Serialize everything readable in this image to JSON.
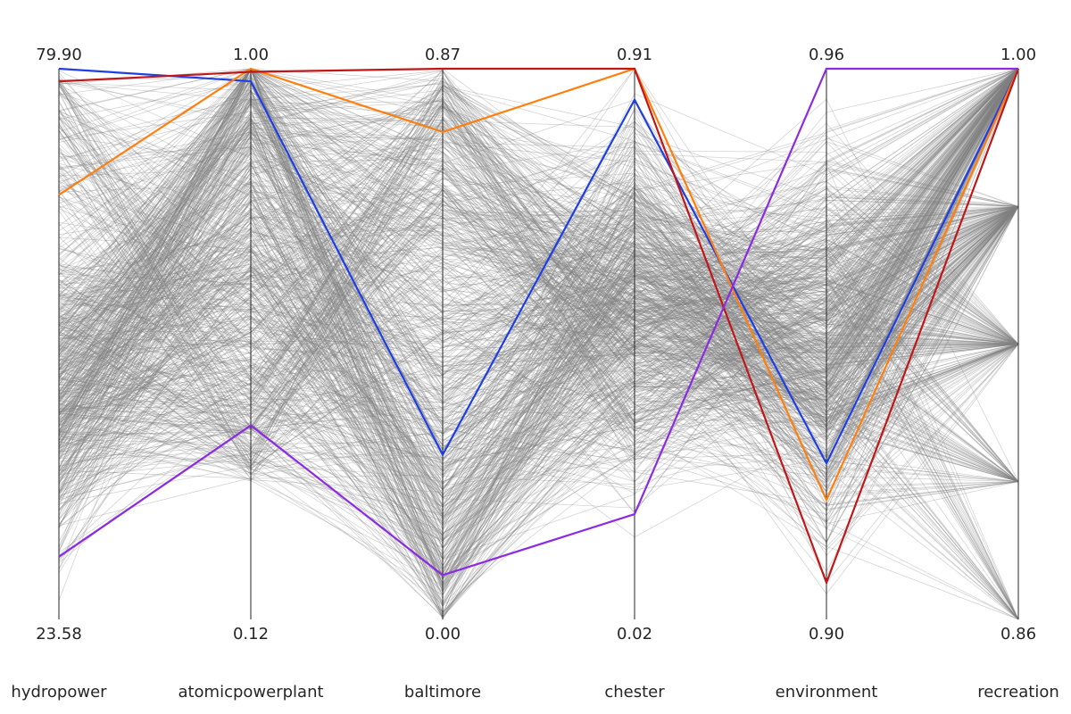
{
  "chart_data": {
    "type": "parallel_coordinates",
    "axes": [
      {
        "name": "hydropower",
        "min": 23.58,
        "max": 79.9,
        "min_label": "23.58",
        "max_label": "79.90"
      },
      {
        "name": "atomicpowerplant",
        "min": 0.12,
        "max": 1.0,
        "min_label": "0.12",
        "max_label": "1.00"
      },
      {
        "name": "baltimore",
        "min": 0.0,
        "max": 0.87,
        "min_label": "0.00",
        "max_label": "0.87"
      },
      {
        "name": "chester",
        "min": 0.02,
        "max": 0.91,
        "min_label": "0.02",
        "max_label": "0.91"
      },
      {
        "name": "environment",
        "min": 0.9,
        "max": 0.96,
        "min_label": "0.90",
        "max_label": "0.96"
      },
      {
        "name": "recreation",
        "min": 0.86,
        "max": 1.0,
        "min_label": "0.86",
        "max_label": "1.00"
      }
    ],
    "highlighted": [
      {
        "color": "#1f3fe6",
        "values": [
          79.9,
          0.98,
          0.26,
          0.86,
          0.917,
          1.0
        ]
      },
      {
        "color": "#ff7f0e",
        "values": [
          67.0,
          1.0,
          0.77,
          0.91,
          0.913,
          1.0
        ]
      },
      {
        "color": "#c01818",
        "values": [
          78.6,
          0.995,
          0.87,
          0.91,
          0.904,
          1.0
        ]
      },
      {
        "color": "#8c2be2",
        "values": [
          30.0,
          0.43,
          0.07,
          0.19,
          0.96,
          1.0
        ]
      }
    ],
    "background_color": "#808080",
    "recreation_levels": [
      0.86,
      0.895,
      0.93,
      0.965,
      1.0
    ],
    "grid": false
  }
}
